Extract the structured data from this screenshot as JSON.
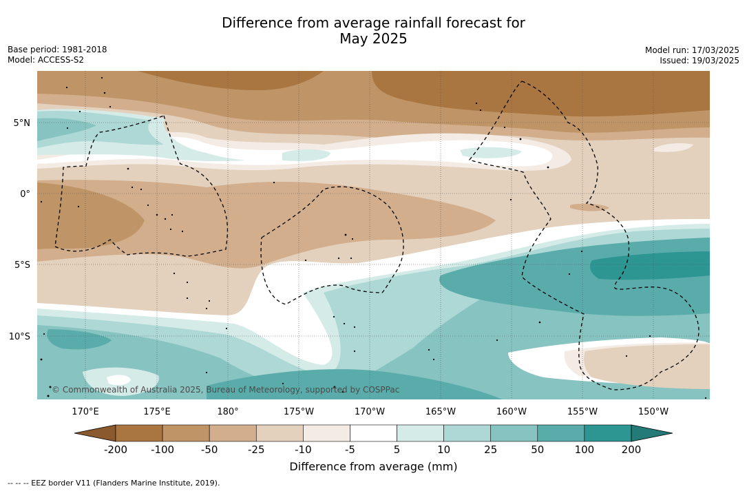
{
  "title": {
    "line1": "Difference from average rainfall forecast for",
    "line2": "May 2025"
  },
  "meta": {
    "base_period": "Base period: 1981-2018",
    "model": "Model: ACCESS-S2",
    "model_run": "Model run: 17/03/2025",
    "issued": "Issued: 19/03/2025"
  },
  "map": {
    "credit": "© Commonwealth of Australia 2025, Bureau of Meteorology, supported by COSPPac",
    "lat_labels": [
      "5°N",
      "0°",
      "5°S",
      "10°S"
    ],
    "lon_labels": [
      "170°E",
      "175°E",
      "180°",
      "175°W",
      "170°W",
      "165°W",
      "160°W",
      "155°W",
      "150°W"
    ],
    "lon_range": [
      166.5,
      213.9
    ],
    "lat_range": [
      -14.2,
      8.6
    ],
    "gridlines": true,
    "boundary_style": "dashed"
  },
  "legend": {
    "title": "Difference from average (mm)",
    "ticks": [
      "-200",
      "-100",
      "-50",
      "-25",
      "-10",
      "-5",
      "5",
      "10",
      "25",
      "50",
      "100",
      "200"
    ],
    "colors": [
      "#a97541",
      "#bf9466",
      "#d2ae8d",
      "#e3d0bd",
      "#f4ece4",
      "#ffffff",
      "#d5ebe8",
      "#aed8d5",
      "#87c3c0",
      "#5aacab",
      "#2d9592"
    ],
    "under_color": "#8a5a2e",
    "over_color": "#237a77"
  },
  "footnote": "--  --  -- EEZ border V11 (Flanders Marine Institute, 2019)."
}
